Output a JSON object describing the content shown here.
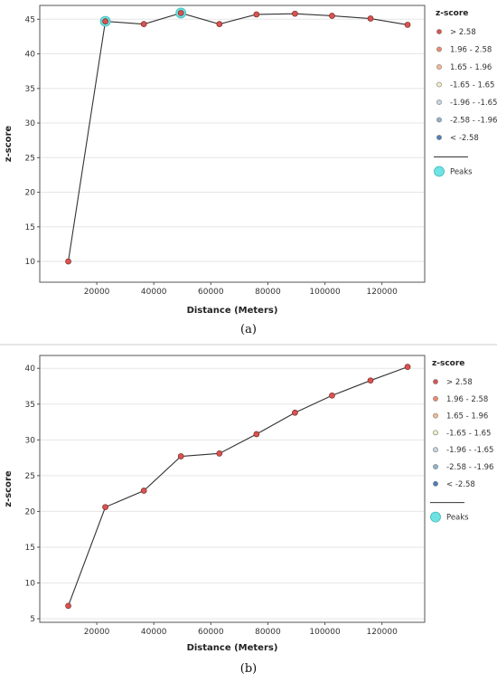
{
  "chart_data": [
    {
      "type": "line",
      "panel_label": "(a)",
      "xlabel": "Distance (Meters)",
      "ylabel": "z-score",
      "xlim": [
        0,
        135000
      ],
      "ylim": [
        7,
        47
      ],
      "x_ticks": [
        20000,
        40000,
        60000,
        80000,
        100000,
        120000
      ],
      "x_tick_labels": [
        "20000",
        "40000",
        "60000",
        "80000",
        "100000",
        "120000"
      ],
      "y_ticks": [
        10,
        15,
        20,
        25,
        30,
        35,
        40,
        45
      ],
      "y_tick_labels": [
        "10",
        "15",
        "20",
        "25",
        "30",
        "35",
        "40",
        "45"
      ],
      "x": [
        10000,
        23000,
        36500,
        49500,
        63000,
        76000,
        89500,
        102500,
        116000,
        129000
      ],
      "y": [
        10.0,
        44.7,
        44.3,
        45.9,
        44.3,
        45.7,
        45.8,
        45.5,
        45.1,
        44.2
      ],
      "peaks_x": [
        23000,
        49500
      ],
      "peaks_y": [
        44.7,
        45.9
      ],
      "grid": true,
      "legend_placement": "right"
    },
    {
      "type": "line",
      "panel_label": "(b)",
      "xlabel": "Distance (Meters)",
      "ylabel": "z-score",
      "xlim": [
        0,
        135000
      ],
      "ylim": [
        4.5,
        41.8
      ],
      "x_ticks": [
        20000,
        40000,
        60000,
        80000,
        100000,
        120000
      ],
      "x_tick_labels": [
        "20000",
        "40000",
        "60000",
        "80000",
        "100000",
        "120000"
      ],
      "y_ticks": [
        5,
        10,
        15,
        20,
        25,
        30,
        35,
        40
      ],
      "y_tick_labels": [
        "5",
        "10",
        "15",
        "20",
        "25",
        "30",
        "35",
        "40"
      ],
      "x": [
        10000,
        23000,
        36500,
        49500,
        63000,
        76000,
        89500,
        102500,
        116000,
        129000
      ],
      "y": [
        6.8,
        20.6,
        22.9,
        27.7,
        28.1,
        30.8,
        33.8,
        36.2,
        38.3,
        40.2
      ],
      "peaks_x": [],
      "peaks_y": [],
      "grid": true,
      "legend_placement": "right"
    }
  ],
  "legend": {
    "title": "z-score",
    "items": [
      {
        "label": "> 2.58",
        "color": "#d9534f"
      },
      {
        "label": "1.96 - 2.58",
        "color": "#ef8a72"
      },
      {
        "label": "1.65 - 1.96",
        "color": "#f4b98f"
      },
      {
        "label": "-1.65 - 1.65",
        "color": "#f2eec9"
      },
      {
        "label": "-1.96 - -1.65",
        "color": "#c8d6e0"
      },
      {
        "label": "-2.58 - -1.96",
        "color": "#8fb3cf"
      },
      {
        "label": "< -2.58",
        "color": "#4f7fb8"
      }
    ],
    "peaks_label": "Peaks",
    "peaks_color": "#6fe3e3"
  },
  "colors": {
    "line": "#333333",
    "point_fill": "#d9534f",
    "point_stroke": "#7a2a28",
    "grid": "#e6e6e6",
    "frame": "#555555"
  }
}
